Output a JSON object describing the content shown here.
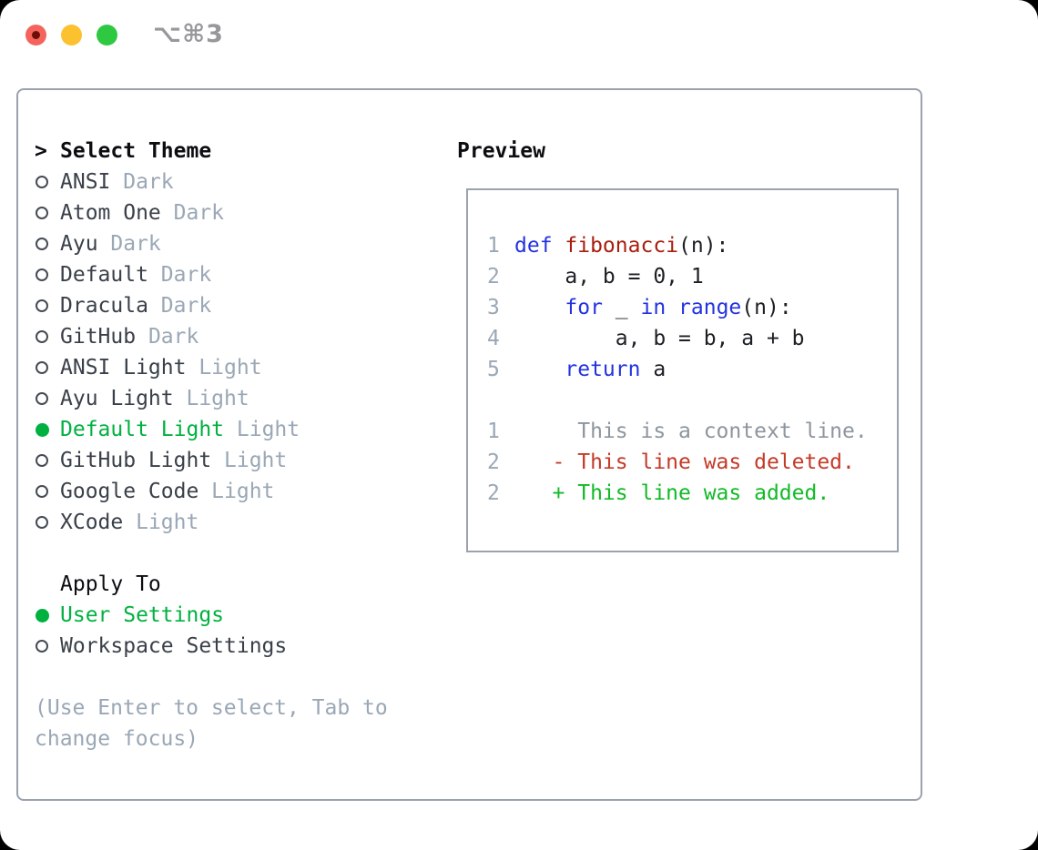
{
  "window": {
    "shortcut": "⌥⌘3"
  },
  "traffic_lights": [
    {
      "name": "close",
      "color": "#f4645c"
    },
    {
      "name": "minimize",
      "color": "#fcc12f"
    },
    {
      "name": "zoom",
      "color": "#2ec941"
    }
  ],
  "theme_panel": {
    "prompt": ">",
    "title": "Select Theme",
    "items": [
      {
        "name": "ANSI",
        "variant": "Dark",
        "selected": false
      },
      {
        "name": "Atom One",
        "variant": "Dark",
        "selected": false
      },
      {
        "name": "Ayu",
        "variant": "Dark",
        "selected": false
      },
      {
        "name": "Default",
        "variant": "Dark",
        "selected": false
      },
      {
        "name": "Dracula",
        "variant": "Dark",
        "selected": false
      },
      {
        "name": "GitHub",
        "variant": "Dark",
        "selected": false
      },
      {
        "name": "ANSI Light",
        "variant": "Light",
        "selected": false
      },
      {
        "name": "Ayu Light",
        "variant": "Light",
        "selected": false
      },
      {
        "name": "Default Light",
        "variant": "Light",
        "selected": true
      },
      {
        "name": "GitHub Light",
        "variant": "Light",
        "selected": false
      },
      {
        "name": "Google Code",
        "variant": "Light",
        "selected": false
      },
      {
        "name": "XCode",
        "variant": "Light",
        "selected": false
      }
    ],
    "apply_to": {
      "title": "Apply To",
      "options": [
        {
          "label": "User Settings",
          "selected": true
        },
        {
          "label": "Workspace Settings",
          "selected": false
        }
      ]
    },
    "hint": "(Use Enter to select, Tab to change focus)"
  },
  "preview": {
    "title": "Preview",
    "code_lines": [
      {
        "num": "1",
        "tokens": [
          {
            "t": "def ",
            "c": "keyword"
          },
          {
            "t": "fibonacci",
            "c": "function"
          },
          {
            "t": "(n):",
            "c": "plain"
          }
        ]
      },
      {
        "num": "2",
        "tokens": [
          {
            "t": "    a, b = 0, 1",
            "c": "plain"
          }
        ]
      },
      {
        "num": "3",
        "tokens": [
          {
            "t": "    ",
            "c": "plain"
          },
          {
            "t": "for",
            "c": "keyword"
          },
          {
            "t": " _ ",
            "c": "plain"
          },
          {
            "t": "in",
            "c": "keyword"
          },
          {
            "t": " ",
            "c": "plain"
          },
          {
            "t": "range",
            "c": "keyword"
          },
          {
            "t": "(n):",
            "c": "plain"
          }
        ]
      },
      {
        "num": "4",
        "tokens": [
          {
            "t": "        a, b = b, a + b",
            "c": "plain"
          }
        ]
      },
      {
        "num": "5",
        "tokens": [
          {
            "t": "    ",
            "c": "plain"
          },
          {
            "t": "return",
            "c": "keyword"
          },
          {
            "t": " a",
            "c": "plain"
          }
        ]
      },
      {
        "num": "",
        "tokens": []
      },
      {
        "num": "1",
        "tokens": [
          {
            "t": "     This is a context line.",
            "c": "context"
          }
        ]
      },
      {
        "num": "2",
        "tokens": [
          {
            "t": "   - This line was deleted.",
            "c": "deleted"
          }
        ]
      },
      {
        "num": "2",
        "tokens": [
          {
            "t": "   + This line was added.",
            "c": "added"
          }
        ]
      }
    ]
  },
  "colors": {
    "c-title": "#0b0d10",
    "c-item": "#3a4049",
    "c-muted": "#9aa7b6",
    "c-green": "#00b140",
    "c-radio": "#454b54",
    "c-border": "#9aa2ae",
    "c-shortcut": "#97979c",
    "c-keyword": "#2333e0",
    "c-function": "#a81e0e",
    "c-plain": "#1c1f24",
    "c-context": "#8d959e",
    "c-deleted": "#c43a28",
    "c-added": "#12ba26",
    "c-linenum": "#9aa7b6",
    "tl-red": "#f4645c",
    "tl-red-dot": "#6b1009",
    "tl-yellow": "#fcc12f",
    "tl-green": "#2ec941"
  }
}
